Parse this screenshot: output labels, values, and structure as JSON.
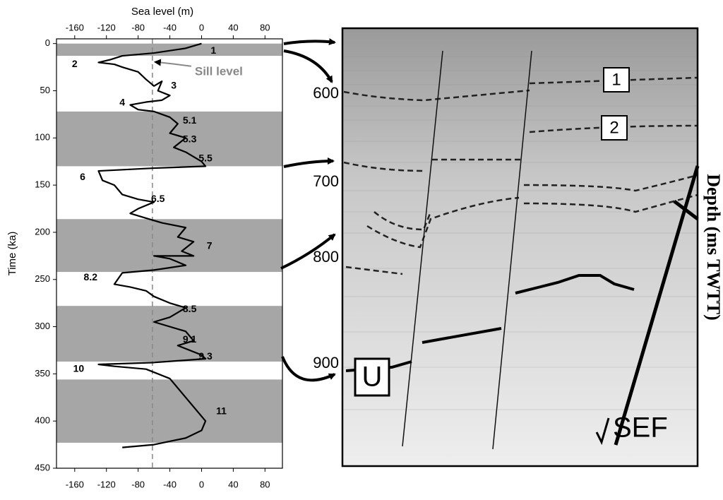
{
  "chart_data": {
    "type": "line",
    "xlabel": "Sea level (m)",
    "ylabel": "Time (ka)",
    "xlim": [
      -183,
      102
    ],
    "xticks": [
      -160,
      -120,
      -80,
      -40,
      0,
      40,
      80
    ],
    "ylim": [
      -5,
      450
    ],
    "yticks": [
      0,
      50,
      100,
      150,
      200,
      250,
      300,
      350,
      400,
      450
    ],
    "y_inverted": true,
    "color": "#000000",
    "bands": {
      "color": "#a6a6a6",
      "start": [
        0,
        72,
        186,
        278,
        356
      ],
      "end": [
        13,
        130,
        242,
        337,
        423
      ]
    },
    "sill_level": {
      "x": -62,
      "label": "Sill level",
      "color": "#888888"
    },
    "x": [
      0,
      -20,
      -60,
      -100,
      -115,
      -130,
      -110,
      -100,
      -80,
      -70,
      -60,
      -50,
      -55,
      -40,
      -50,
      -70,
      -90,
      -80,
      -60,
      -40,
      -30,
      -40,
      -20,
      -35,
      -20,
      0,
      5,
      -60,
      -130,
      -125,
      -110,
      -100,
      -80,
      -60,
      -80,
      -90,
      -70,
      -50,
      -20,
      -30,
      -10,
      -25,
      -10,
      -60,
      -40,
      -20,
      -60,
      -100,
      -110,
      -90,
      -70,
      -60,
      -40,
      -20,
      -40,
      -60,
      -20,
      -10,
      -30,
      0,
      5,
      -60,
      -130,
      -110,
      -70,
      -40,
      -30,
      -20,
      -5,
      5,
      0,
      -20,
      -60,
      -100
    ],
    "y": [
      0,
      5,
      10,
      13,
      17,
      20,
      22,
      25,
      30,
      38,
      45,
      40,
      50,
      55,
      60,
      62,
      65,
      70,
      72,
      78,
      85,
      95,
      100,
      110,
      115,
      125,
      130,
      132,
      135,
      145,
      150,
      160,
      165,
      168,
      175,
      180,
      185,
      190,
      195,
      205,
      210,
      220,
      225,
      225,
      228,
      235,
      240,
      243,
      255,
      258,
      262,
      268,
      275,
      280,
      290,
      295,
      305,
      315,
      320,
      330,
      334,
      338,
      340,
      342,
      345,
      355,
      365,
      375,
      390,
      400,
      410,
      418,
      425,
      428
    ],
    "stage_labels": [
      {
        "label": "1",
        "x": 15,
        "y": 8
      },
      {
        "label": "2",
        "x": -160,
        "y": 22
      },
      {
        "label": "3",
        "x": -35,
        "y": 45
      },
      {
        "label": "4",
        "x": -100,
        "y": 63
      },
      {
        "label": "5.1",
        "x": -15,
        "y": 82
      },
      {
        "label": "5.3",
        "x": -15,
        "y": 102
      },
      {
        "label": "5.5",
        "x": 5,
        "y": 122
      },
      {
        "label": "6",
        "x": -150,
        "y": 142
      },
      {
        "label": "6.5",
        "x": -55,
        "y": 165
      },
      {
        "label": "7",
        "x": 10,
        "y": 215
      },
      {
        "label": "8.2",
        "x": -140,
        "y": 248
      },
      {
        "label": "8.5",
        "x": -15,
        "y": 282
      },
      {
        "label": "9.1",
        "x": -15,
        "y": 314
      },
      {
        "label": "9.3",
        "x": 5,
        "y": 332
      },
      {
        "label": "10",
        "x": -155,
        "y": 345
      },
      {
        "label": "11",
        "x": 25,
        "y": 390
      }
    ]
  },
  "seismic": {
    "axis_label": "Depth (ms TWTT)",
    "depth_ticks": [
      600,
      700,
      800,
      900
    ],
    "labels": [
      "1",
      "2",
      "U",
      "SEF"
    ]
  }
}
